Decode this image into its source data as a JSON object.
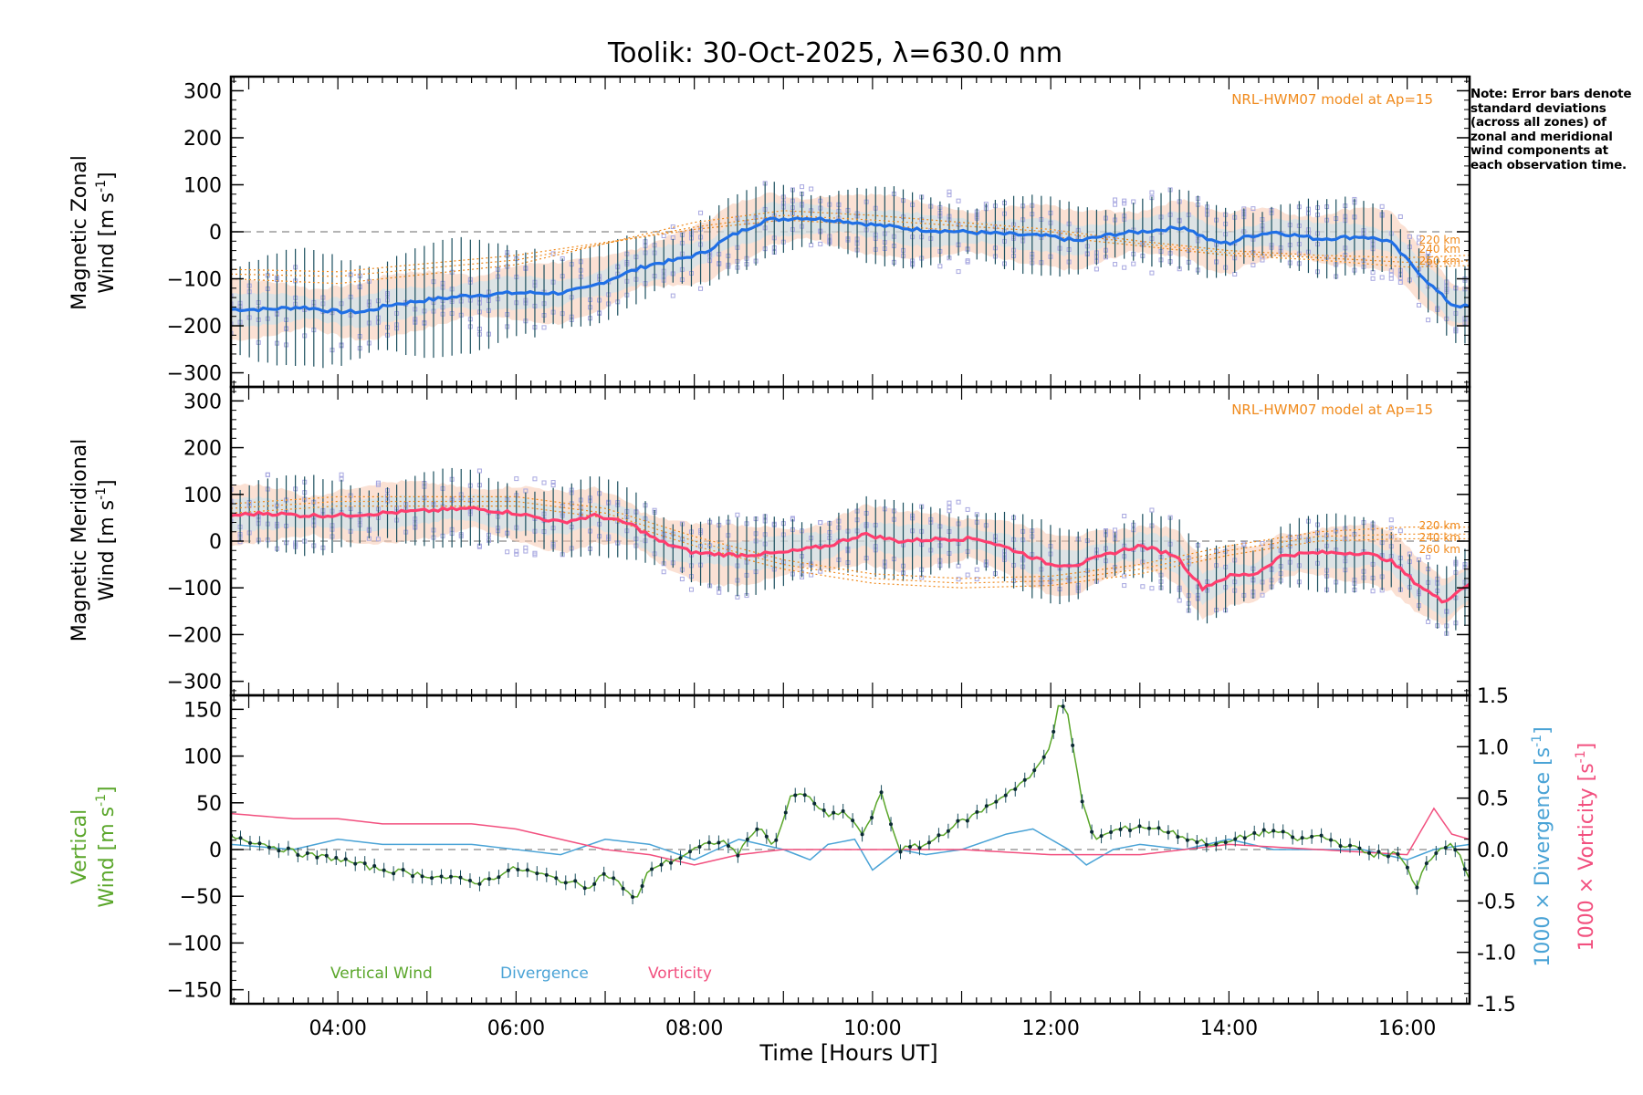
{
  "title": "Toolik: 30-Oct-2025, λ=630.0 nm",
  "note": "Note: Error bars denote standard deviations (across all zones) of zonal and meridional wind components at each observation time.",
  "colors": {
    "zonal_line": "#1f6fe6",
    "meridional_line": "#ff3d6e",
    "vertical_line": "#5aa62a",
    "divergence_line": "#4aa3d6",
    "vorticity_line": "#f2507f",
    "model_line": "#f08a1c",
    "model_text": "#f08a1c",
    "error_bar": "#1b4f5e",
    "scatter_box": "#a7a7e0",
    "spread_fill": "#f7c8b0",
    "spread_fill_alt": "#bfe6f5",
    "vertical_label": "#5aa62a",
    "divergence_label": "#4aa3d6",
    "vorticity_label": "#f2507f"
  },
  "chart_data": [
    {
      "type": "line",
      "name": "zonal",
      "ylabel_line1": "Magnetic Zonal",
      "ylabel_line2_prefix": "Wind [m s",
      "ylabel_sup": "-1",
      "ylabel_suffix": "]",
      "xlim": [
        2.8,
        16.7
      ],
      "ylim": [
        -330,
        330
      ],
      "yticks": [
        -300,
        -200,
        -100,
        0,
        100,
        200,
        300
      ],
      "model_label": "NRL-HWM07 model at Ap=15",
      "model_alt_labels": [
        "220 km",
        "240 km",
        "260 km"
      ],
      "keypoints": {
        "t": [
          2.8,
          3.2,
          3.6,
          4.0,
          4.3,
          4.6,
          5.0,
          5.5,
          6.0,
          6.5,
          6.8,
          7.2,
          7.5,
          7.8,
          8.1,
          8.4,
          8.8,
          9.2,
          9.6,
          10.0,
          10.5,
          11.0,
          11.5,
          12.0,
          12.3,
          12.7,
          13.0,
          13.5,
          13.8,
          14.0,
          14.2,
          14.5,
          15.0,
          15.5,
          15.8,
          16.0,
          16.3,
          16.5,
          16.7
        ],
        "v": [
          -165,
          -165,
          -160,
          -170,
          -170,
          -155,
          -145,
          -135,
          -130,
          -130,
          -120,
          -90,
          -70,
          -60,
          -45,
          -10,
          25,
          30,
          25,
          15,
          5,
          0,
          -5,
          -10,
          -20,
          -5,
          0,
          10,
          -20,
          -25,
          -10,
          0,
          -15,
          -10,
          -20,
          -60,
          -120,
          -155,
          -160
        ]
      },
      "model_curves": [
        {
          "t": [
            2.8,
            4,
            6,
            8,
            9,
            10,
            12,
            13,
            14,
            15,
            16,
            16.7
          ],
          "v": [
            -100,
            -110,
            -70,
            20,
            45,
            35,
            5,
            -20,
            -40,
            -50,
            -55,
            -50
          ]
        },
        {
          "t": [
            2.8,
            4,
            6,
            8,
            9,
            10,
            12,
            13,
            14,
            15,
            16,
            16.7
          ],
          "v": [
            -90,
            -95,
            -60,
            10,
            35,
            25,
            0,
            -25,
            -45,
            -55,
            -65,
            -62
          ]
        },
        {
          "t": [
            2.8,
            4,
            6,
            8,
            9,
            10,
            12,
            13,
            14,
            15,
            16,
            16.7
          ],
          "v": [
            -80,
            -85,
            -50,
            5,
            25,
            15,
            -10,
            -30,
            -50,
            -60,
            -75,
            -72
          ]
        }
      ]
    },
    {
      "type": "line",
      "name": "meridional",
      "ylabel_line1": "Magnetic Meridional",
      "ylabel_line2_prefix": "Wind [m s",
      "ylabel_sup": "-1",
      "ylabel_suffix": "]",
      "xlim": [
        2.8,
        16.7
      ],
      "ylim": [
        -330,
        330
      ],
      "yticks": [
        -300,
        -200,
        -100,
        0,
        100,
        200,
        300
      ],
      "model_label": "NRL-HWM07 model at Ap=15",
      "model_alt_labels": [
        "220 km",
        "240 km",
        "260 km"
      ],
      "keypoints": {
        "t": [
          2.8,
          3.2,
          3.6,
          4.0,
          4.5,
          5.0,
          5.5,
          6.0,
          6.5,
          6.9,
          7.3,
          7.6,
          8.0,
          8.5,
          9.0,
          9.5,
          9.9,
          10.3,
          10.8,
          11.2,
          11.6,
          12.0,
          12.3,
          12.7,
          13.0,
          13.4,
          13.7,
          14.0,
          14.3,
          14.6,
          15.0,
          15.5,
          15.8,
          16.1,
          16.4,
          16.7
        ],
        "v": [
          55,
          60,
          55,
          55,
          60,
          65,
          70,
          60,
          40,
          55,
          35,
          0,
          -25,
          -30,
          -25,
          -10,
          15,
          0,
          5,
          5,
          -20,
          -50,
          -50,
          -25,
          -10,
          -30,
          -100,
          -75,
          -70,
          -30,
          -25,
          -25,
          -40,
          -90,
          -130,
          -90
        ]
      },
      "model_curves": [
        {
          "t": [
            2.8,
            4,
            6,
            7,
            8,
            9,
            10,
            11,
            12,
            13,
            14,
            15,
            16,
            16.7
          ],
          "v": [
            80,
            95,
            95,
            70,
            10,
            -40,
            -70,
            -80,
            -75,
            -50,
            -10,
            20,
            30,
            30
          ]
        },
        {
          "t": [
            2.8,
            4,
            6,
            7,
            8,
            9,
            10,
            11,
            12,
            13,
            14,
            15,
            16,
            16.7
          ],
          "v": [
            70,
            85,
            85,
            60,
            0,
            -50,
            -80,
            -90,
            -85,
            -60,
            -20,
            10,
            15,
            15
          ]
        },
        {
          "t": [
            2.8,
            4,
            6,
            7,
            8,
            9,
            10,
            11,
            12,
            13,
            14,
            15,
            16,
            16.7
          ],
          "v": [
            60,
            75,
            75,
            50,
            -10,
            -60,
            -90,
            -100,
            -95,
            -70,
            -30,
            0,
            5,
            5
          ]
        }
      ]
    },
    {
      "type": "line",
      "name": "vertical",
      "ylabel_line1": "Vertical",
      "ylabel_line2_prefix": "Wind [m s",
      "ylabel_sup": "-1",
      "ylabel_suffix": "]",
      "right_label_div_prefix": "1000 × Divergence [s",
      "right_label_vor_prefix": "1000 × Vorticity [s",
      "right_label_sup": "-1",
      "right_label_suffix": "]",
      "xlim": [
        2.8,
        16.7
      ],
      "ylim": [
        -165,
        165
      ],
      "yticks": [
        -150,
        -100,
        -50,
        0,
        50,
        100,
        150
      ],
      "y2lim": [
        -1.5,
        1.5
      ],
      "y2ticks": [
        -1.5,
        -1.0,
        -0.5,
        0.0,
        0.5,
        1.0,
        1.5
      ],
      "xlabel": "Time [Hours UT]",
      "xtick_values": [
        4,
        6,
        8,
        10,
        12,
        14,
        16
      ],
      "xtick_labels": [
        "04:00",
        "06:00",
        "08:00",
        "10:00",
        "12:00",
        "14:00",
        "16:00"
      ],
      "legend": [
        "Vertical Wind",
        "Divergence",
        "Vorticity"
      ],
      "vertical_keypoints": {
        "t": [
          2.8,
          3.2,
          3.6,
          4.0,
          4.4,
          4.8,
          5.2,
          5.6,
          6.0,
          6.4,
          6.8,
          7.0,
          7.2,
          7.35,
          7.5,
          7.8,
          8.0,
          8.3,
          8.5,
          8.7,
          8.9,
          9.1,
          9.3,
          9.5,
          9.7,
          9.9,
          10.1,
          10.3,
          10.6,
          10.9,
          11.2,
          11.5,
          11.8,
          12.0,
          12.1,
          12.2,
          12.35,
          12.5,
          12.7,
          13.0,
          13.3,
          13.6,
          13.9,
          14.2,
          14.5,
          14.8,
          15.0,
          15.3,
          15.6,
          15.9,
          16.0,
          16.1,
          16.2,
          16.3,
          16.5,
          16.7
        ],
        "v": [
          15,
          5,
          -5,
          -10,
          -20,
          -25,
          -30,
          -35,
          -20,
          -30,
          -40,
          -25,
          -40,
          -55,
          -20,
          -10,
          0,
          10,
          -5,
          25,
          5,
          60,
          55,
          35,
          40,
          15,
          60,
          0,
          5,
          25,
          40,
          60,
          80,
          110,
          165,
          140,
          50,
          10,
          20,
          25,
          20,
          10,
          5,
          15,
          20,
          10,
          15,
          5,
          -5,
          -5,
          -20,
          -45,
          -15,
          -5,
          10,
          -30
        ]
      },
      "divergence": {
        "t": [
          2.8,
          3.5,
          4,
          4.5,
          5,
          5.5,
          6,
          6.5,
          7,
          7.5,
          8,
          8.5,
          9,
          9.3,
          9.5,
          9.8,
          10,
          10.3,
          10.6,
          11,
          11.5,
          11.8,
          12.0,
          12.2,
          12.4,
          12.7,
          13,
          13.5,
          14,
          14.5,
          15,
          15.5,
          16,
          16.3,
          16.7
        ],
        "v": [
          0.05,
          0.0,
          0.1,
          0.05,
          0.05,
          0.05,
          0.0,
          -0.05,
          0.1,
          0.05,
          -0.1,
          0.1,
          0.0,
          -0.1,
          0.05,
          0.1,
          -0.2,
          0.0,
          -0.05,
          0.0,
          0.15,
          0.2,
          0.1,
          0.0,
          -0.15,
          0.0,
          0.05,
          0.0,
          0.1,
          0.0,
          0.0,
          0.0,
          -0.1,
          0.0,
          0.05
        ]
      },
      "vorticity": {
        "t": [
          2.8,
          3.5,
          4,
          4.5,
          5,
          5.5,
          6,
          6.5,
          7,
          7.5,
          8,
          8.5,
          9,
          10,
          11,
          12,
          13,
          14,
          15,
          16,
          16.3,
          16.5,
          16.7
        ],
        "v": [
          0.35,
          0.3,
          0.3,
          0.25,
          0.25,
          0.25,
          0.2,
          0.1,
          0.0,
          -0.05,
          -0.15,
          -0.05,
          0.0,
          0.0,
          0.0,
          -0.05,
          -0.05,
          0.05,
          0.0,
          -0.05,
          0.4,
          0.15,
          0.1
        ]
      }
    }
  ]
}
